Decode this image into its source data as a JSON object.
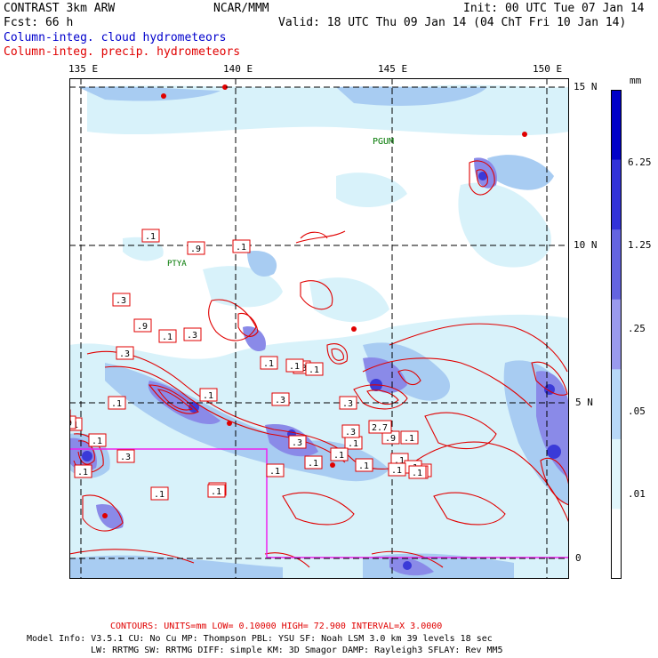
{
  "header": {
    "model": "CONTRAST  3km ARW",
    "agency": "NCAR/MMM",
    "init": "Init: 00 UTC Tue 07 Jan 14",
    "fcst": "Fcst:   66 h",
    "valid": "Valid: 18 UTC Thu 09 Jan 14 (04 ChT Fri 10 Jan 14)",
    "field_fill": "Column-integ. cloud hydrometeors",
    "field_contour": "Column-integ. precip. hydrometeors"
  },
  "map": {
    "lon_labels": [
      "135 E",
      "140 E",
      "145 E",
      "150 E"
    ],
    "lat_labels": [
      "15 N",
      "10 N",
      "5 N",
      "0"
    ],
    "places": [
      "PGUM",
      "PTYA"
    ],
    "contour_labels": [
      ".1",
      ".9",
      ".1",
      ".3",
      ".3",
      ".9",
      ".1",
      ".3",
      ".3",
      ".1",
      ".3",
      ".1",
      ".1",
      ".3",
      ".1",
      ".1",
      ".1",
      ".9",
      ".1",
      ".3",
      ".1",
      ".3",
      ".1",
      ".1",
      ".1",
      ".1",
      ".1",
      ".3",
      ".1",
      ".3",
      ".1",
      ".9",
      ".1",
      ".3",
      ".1",
      ".3",
      ".1",
      ".1",
      "2.7",
      ".1",
      ".1",
      ".3",
      ".1",
      ".1",
      ".1",
      ".1"
    ],
    "colors": {
      "contour": "#e00000",
      "highlight_box": "#ee22ee",
      "grid": "#000000",
      "fill_levels": [
        "#d8f2fa",
        "#a8ccf2",
        "#8a8ae8",
        "#5454de",
        "#2222cc"
      ]
    }
  },
  "legend": {
    "unit": "mm",
    "levels": [
      "6.25",
      "1.25",
      ".25",
      ".05",
      ".01"
    ],
    "colors": [
      "#0000c8",
      "#3232d8",
      "#6464e0",
      "#9a9aee",
      "#b8d8f8",
      "#e0f6fc",
      "#ffffff"
    ]
  },
  "footer": {
    "contours": "CONTOURS:  UNITS=mm  LOW= 0.10000      HIGH=  72.900      INTERVAL=X  3.0000",
    "line1": "Model Info: V3.5.1     CU: No Cu    MP: Thompson     PBL: YSU      SF: Noah LSM     3.0 km   39 levels   18 sec",
    "line2": "LW: RRTMG    SW: RRTMG   DIFF: simple KM: 3D Smagor DAMP: Rayleigh3  SFLAY: Rev MM5"
  }
}
